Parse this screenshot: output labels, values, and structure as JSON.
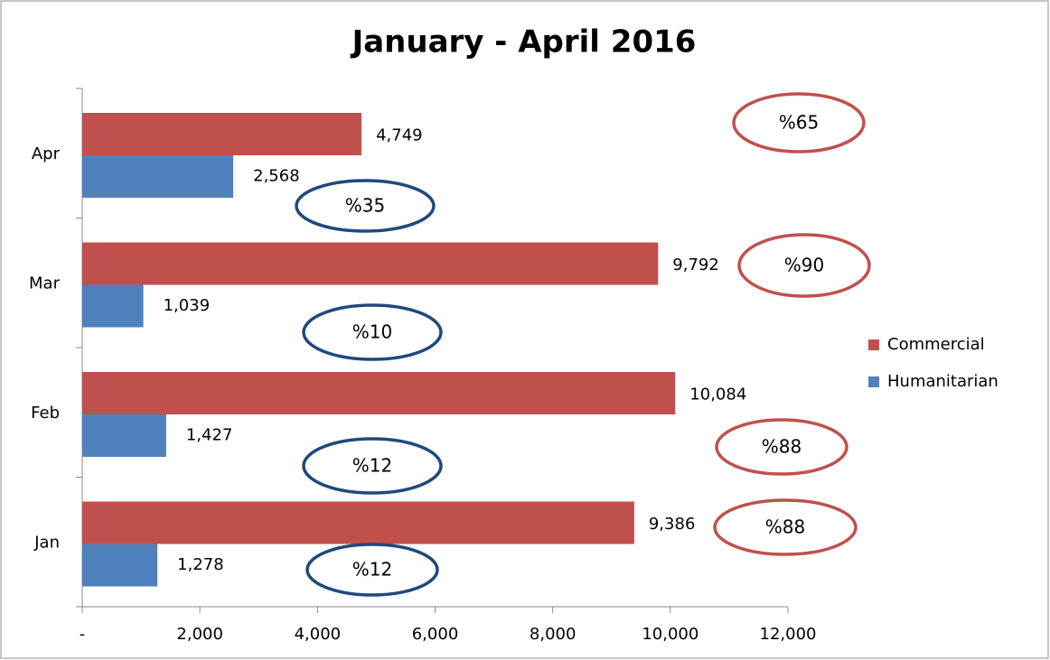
{
  "chart_data": {
    "type": "bar",
    "orientation": "horizontal",
    "title": "January - April 2016",
    "categories": [
      "Jan",
      "Feb",
      "Mar",
      "Apr"
    ],
    "series": [
      {
        "name": "Commercial",
        "color": "#c0504d",
        "values": [
          9386,
          10084,
          9792,
          4749
        ],
        "value_labels": [
          "9,386",
          "10,084",
          "9,792",
          "4,749"
        ]
      },
      {
        "name": "Humanitarian",
        "color": "#4f81bd",
        "values": [
          1278,
          1427,
          1039,
          2568
        ],
        "value_labels": [
          "1,278",
          "1,427",
          "1,039",
          "2,568"
        ]
      }
    ],
    "xlim": [
      0,
      12000
    ],
    "xticks": [
      {
        "value": 0,
        "label": "-"
      },
      {
        "value": 2000,
        "label": "2,000"
      },
      {
        "value": 4000,
        "label": "4,000"
      },
      {
        "value": 6000,
        "label": "6,000"
      },
      {
        "value": 8000,
        "label": "8,000"
      },
      {
        "value": 10000,
        "label": "10,000"
      },
      {
        "value": 12000,
        "label": "12,000"
      }
    ],
    "legend": "right",
    "annotations": [
      {
        "text": "%65",
        "color": "#c0504d"
      },
      {
        "text": "%35",
        "color": "#1f497d"
      },
      {
        "text": "%90",
        "color": "#c0504d"
      },
      {
        "text": "%10",
        "color": "#1f497d"
      },
      {
        "text": "%88",
        "color": "#c0504d"
      },
      {
        "text": "%12",
        "color": "#1f497d"
      },
      {
        "text": "%88",
        "color": "#c0504d"
      },
      {
        "text": "%12",
        "color": "#1f497d"
      }
    ]
  }
}
